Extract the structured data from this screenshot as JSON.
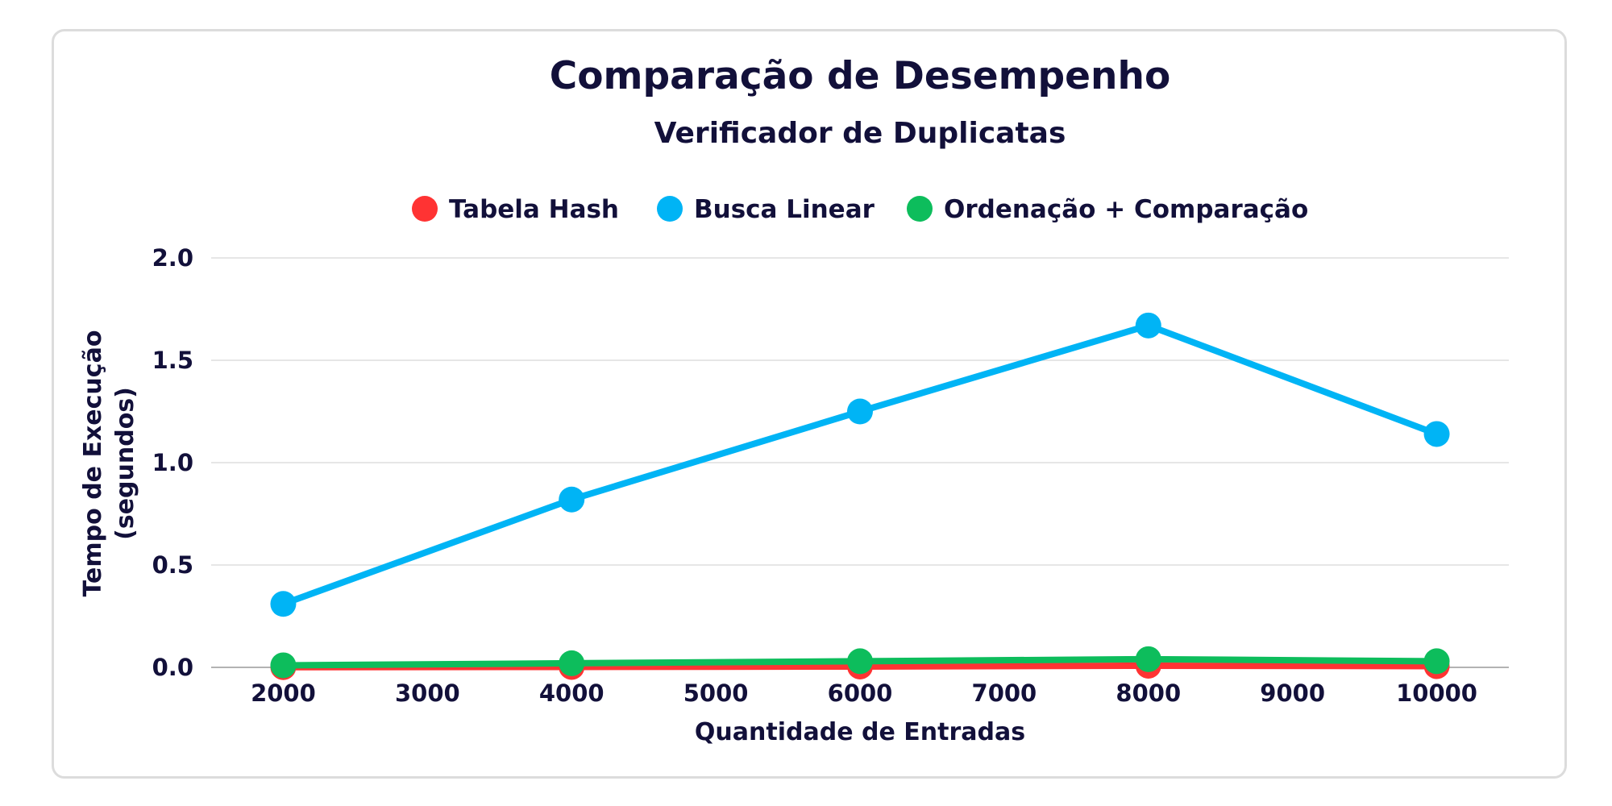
{
  "chart_data": {
    "type": "line",
    "title": "Comparação de Desempenho",
    "subtitle": "Verificador de Duplicatas",
    "xlabel": "Quantidade de Entradas",
    "ylabel": [
      "Tempo de Execução",
      "(segundos)"
    ],
    "x": [
      2000,
      4000,
      6000,
      8000,
      10000
    ],
    "xlim": [
      1500,
      10500
    ],
    "xticks": [
      "2000",
      "3000",
      "4000",
      "5000",
      "6000",
      "7000",
      "8000",
      "9000",
      "10000"
    ],
    "ylim": [
      0,
      2.0
    ],
    "yticks": [
      "0.0",
      "0.5",
      "1.0",
      "1.5",
      "2.0"
    ],
    "grid": "horizontal",
    "legend": "top-center",
    "series": [
      {
        "name": "Tabela Hash",
        "color": "#ff3333",
        "values": [
          0.001,
          0.002,
          0.004,
          0.008,
          0.006
        ]
      },
      {
        "name": "Busca Linear",
        "color": "#00b4f5",
        "values": [
          0.31,
          0.82,
          1.25,
          1.67,
          1.14
        ]
      },
      {
        "name": "Ordenação + Comparação",
        "color": "#0dbd5c",
        "values": [
          0.01,
          0.02,
          0.03,
          0.04,
          0.03
        ]
      }
    ]
  }
}
